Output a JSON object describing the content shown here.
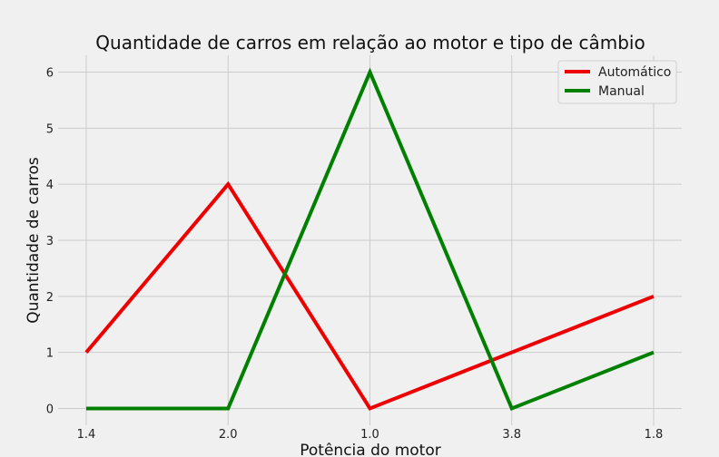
{
  "chart_data": {
    "type": "line",
    "title": "Quantidade de carros em relação ao motor e tipo de câmbio",
    "xlabel": "Potência do motor",
    "ylabel": "Quantidade de carros",
    "categories": [
      "1.4",
      "2.0",
      "1.0",
      "3.8",
      "1.8"
    ],
    "yticks": [
      "0",
      "1",
      "2",
      "3",
      "4",
      "5",
      "6"
    ],
    "ylim": [
      -0.3,
      6.3
    ],
    "grid": true,
    "legend_position": "top-right",
    "series": [
      {
        "name": "Automático",
        "values": [
          1,
          4,
          0,
          1,
          2
        ],
        "color": "#ee0000"
      },
      {
        "name": "Manual",
        "values": [
          0,
          0,
          6,
          0,
          1
        ],
        "color": "#008000"
      }
    ]
  }
}
